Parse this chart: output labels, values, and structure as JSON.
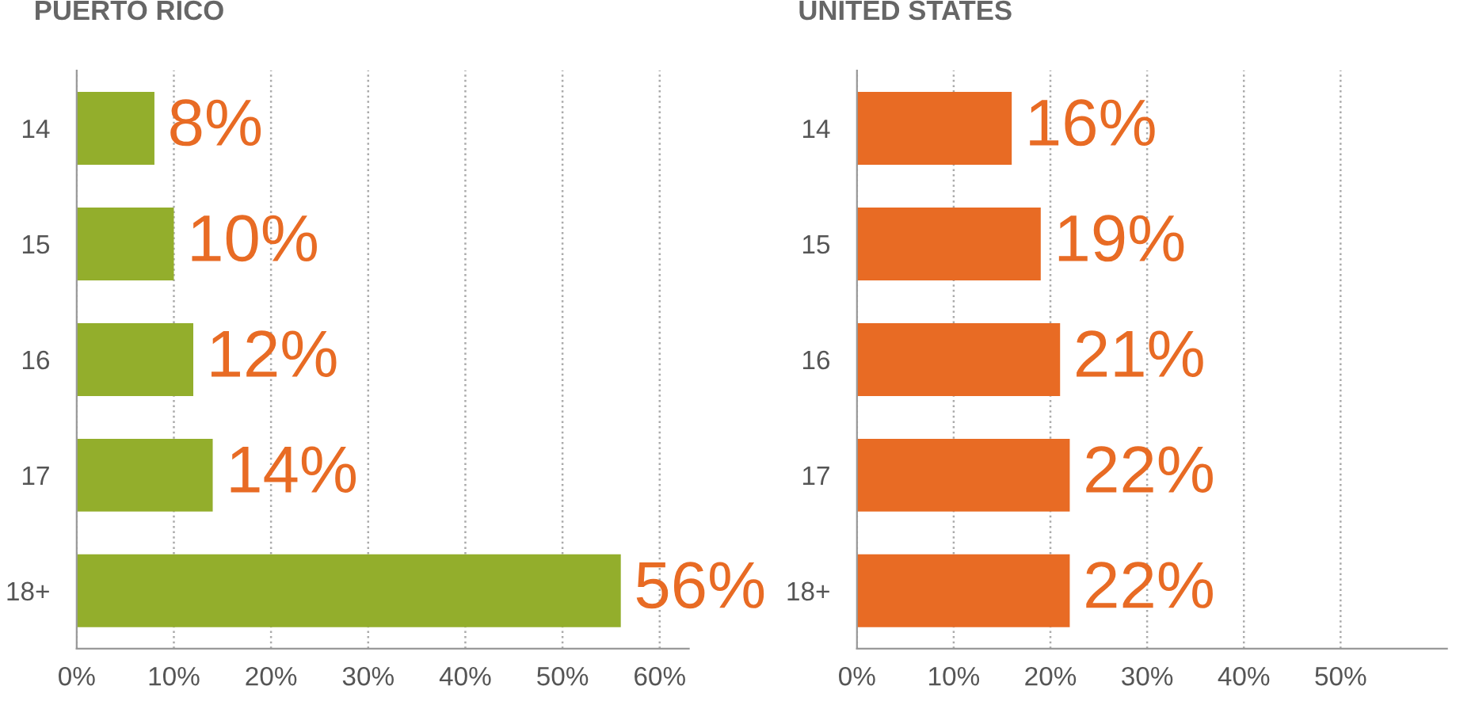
{
  "chart_data": [
    {
      "type": "bar",
      "orientation": "horizontal",
      "title": "PUERTO RICO",
      "categories": [
        "14",
        "15",
        "16",
        "17",
        "18+"
      ],
      "series": [
        {
          "color": "#93ae2c",
          "values": [
            8,
            10,
            12,
            14,
            56
          ],
          "value_labels": [
            "8%",
            "10%",
            "12%",
            "14%",
            "56%"
          ]
        }
      ],
      "xlim": [
        0,
        63
      ],
      "xticks": [
        {
          "value": 0,
          "label": "0%"
        },
        {
          "value": 10,
          "label": "10%"
        },
        {
          "value": 20,
          "label": "20%"
        },
        {
          "value": 30,
          "label": "30%"
        },
        {
          "value": 40,
          "label": "40%"
        },
        {
          "value": 50,
          "label": "50%"
        },
        {
          "value": 60,
          "label": "60%"
        }
      ],
      "grid": "x",
      "legend": false
    },
    {
      "type": "bar",
      "orientation": "horizontal",
      "title": "UNITED STATES",
      "categories": [
        "14",
        "15",
        "16",
        "17",
        "18+"
      ],
      "series": [
        {
          "color": "#e86b24",
          "values": [
            16,
            19,
            21,
            22,
            22
          ],
          "value_labels": [
            "16%",
            "19%",
            "21%",
            "22%",
            "22%"
          ]
        }
      ],
      "xlim": [
        0,
        61
      ],
      "xticks": [
        {
          "value": 0,
          "label": "0%"
        },
        {
          "value": 10,
          "label": "10%"
        },
        {
          "value": 20,
          "label": "20%"
        },
        {
          "value": 30,
          "label": "30%"
        },
        {
          "value": 40,
          "label": "40%"
        },
        {
          "value": 50,
          "label": "50%"
        }
      ],
      "grid": "x",
      "legend": false
    }
  ]
}
